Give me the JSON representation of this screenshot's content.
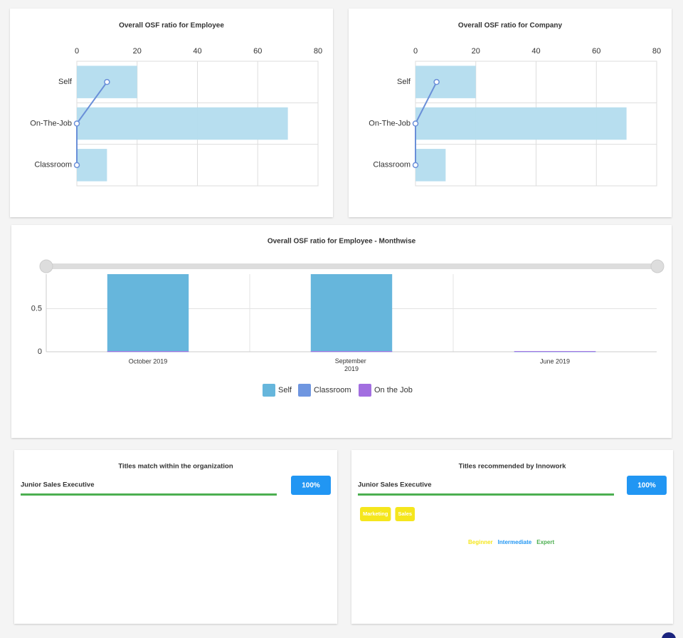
{
  "chart_data": [
    {
      "type": "hbar",
      "title": "Overall OSF ratio for Employee",
      "categories": [
        "Self",
        "On-The-Job",
        "Classroom"
      ],
      "series": [
        {
          "color": "#b3dcee",
          "values": [
            20,
            70,
            10
          ]
        },
        {
          "type": "line",
          "color": "#6a8fd8",
          "values": [
            10,
            0,
            0
          ]
        }
      ],
      "xlim": [
        0,
        80
      ],
      "xticks": [
        0,
        20,
        40,
        60,
        80
      ],
      "grid": true
    },
    {
      "type": "hbar",
      "title": "Overall OSF ratio for Company",
      "categories": [
        "Self",
        "On-The-Job",
        "Classroom"
      ],
      "series": [
        {
          "color": "#b3dcee",
          "values": [
            20,
            70,
            10
          ]
        },
        {
          "type": "line",
          "color": "#6a8fd8",
          "values": [
            7,
            0,
            0
          ]
        }
      ],
      "xlim": [
        0,
        80
      ],
      "xticks": [
        0,
        20,
        40,
        60,
        80
      ],
      "grid": true
    },
    {
      "type": "bar",
      "title": "Overall OSF ratio for Employee - Monthwise",
      "categories": [
        "October 2019",
        "September 2019",
        "June 2019"
      ],
      "series": [
        {
          "name": "Self",
          "color": "#66b6dc",
          "values": [
            0.9,
            0.9,
            0
          ]
        },
        {
          "name": "Classroom",
          "color": "#6f96e0",
          "values": [
            0,
            0,
            0
          ]
        },
        {
          "name": "On the Job",
          "color": "#a26ee0",
          "values": [
            0,
            0,
            0
          ]
        }
      ],
      "ylim": [
        0,
        0.9
      ],
      "yticks": [
        0,
        0.5
      ],
      "grid": true,
      "legend": "bottom"
    }
  ],
  "cards": [
    {
      "title": "Titles match within the organization",
      "item": "Junior Sales Executive",
      "value": 100,
      "value_label": "100%",
      "color": "#4caf50"
    },
    {
      "title": "Titles recommended by Innowork",
      "item": "Junior Sales Executive",
      "value": 100,
      "value_label": "100%",
      "color": "#4caf50",
      "tags": [
        "Marketing",
        "Sales"
      ],
      "levels": [
        {
          "label": "Beginner",
          "color": "#f5e61d"
        },
        {
          "label": "Intermediate",
          "color": "#2196f3"
        },
        {
          "label": "Expert",
          "color": "#4caf50"
        }
      ]
    }
  ]
}
